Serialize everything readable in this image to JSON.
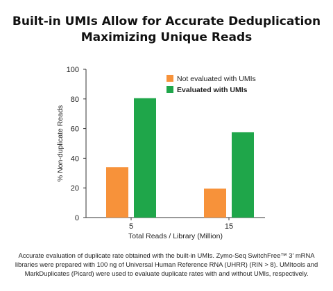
{
  "title_lines": [
    "Built-in UMIs Allow for Accurate Deduplication",
    "Maximizing Unique Reads"
  ],
  "caption_lines": [
    "Accurate evaluation of duplicate rate obtained with the built-in UMIs. Zymo-Seq SwitchFree™ 3′ mRNA",
    "libraries were prepared with 100 ng of Universal Human Reference RNA (UHRR) (RIN > 8). UMItools and",
    "MarkDuplicates (Picard) were used to evaluate duplicate rates with and without UMIs, respectively."
  ],
  "chart_data": {
    "type": "bar",
    "categories": [
      "5",
      "15"
    ],
    "series": [
      {
        "name": "Not evaluated with UMIs",
        "values": [
          34,
          19.5
        ],
        "color": "#f7923a",
        "bold": false
      },
      {
        "name": "Evaluated with UMIs",
        "values": [
          80.5,
          57.5
        ],
        "color": "#1fa64a",
        "bold": true
      }
    ],
    "xlabel": "Total Reads / Library (Million)",
    "ylabel": "% Non-duplicate Reads",
    "ylim": [
      0,
      100
    ],
    "yticks": [
      0,
      20,
      40,
      60,
      80,
      100
    ],
    "grid": false,
    "legend_position": "top-right"
  }
}
